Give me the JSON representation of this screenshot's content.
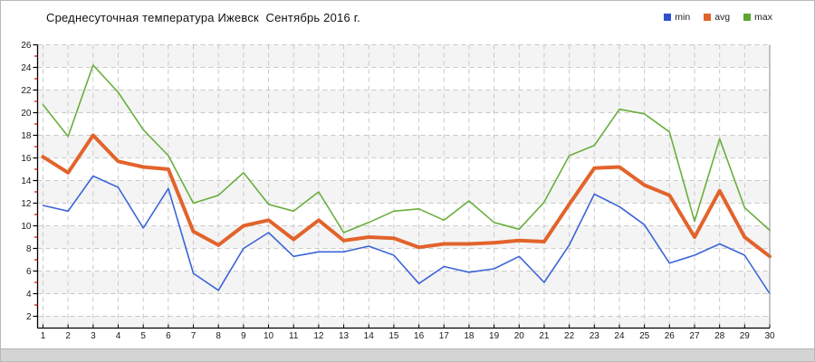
{
  "header": {
    "title": "Среднесуточная температура Ижевск  Сентябрь 2016 г."
  },
  "legend": [
    {
      "label": "min",
      "color": "#2d50d2"
    },
    {
      "label": "avg",
      "color": "#e2632b"
    },
    {
      "label": "max",
      "color": "#5ca531"
    }
  ],
  "chart_data": {
    "type": "line",
    "title": "Среднесуточная температура Ижевск  Сентябрь 2016 г.",
    "xlabel": "",
    "ylabel": "",
    "categories": [
      1,
      2,
      3,
      4,
      5,
      6,
      7,
      8,
      9,
      10,
      11,
      12,
      13,
      14,
      15,
      16,
      17,
      18,
      19,
      20,
      21,
      22,
      23,
      24,
      25,
      26,
      27,
      28,
      29,
      30
    ],
    "series": [
      {
        "name": "max",
        "color": "#6aae3e",
        "width": 1.6,
        "values": [
          20.7,
          17.9,
          24.2,
          21.8,
          18.5,
          16.2,
          12.0,
          12.7,
          14.7,
          11.9,
          11.3,
          13.0,
          9.4,
          10.3,
          11.3,
          11.5,
          10.5,
          12.2,
          10.3,
          9.7,
          12.1,
          16.2,
          17.1,
          20.3,
          19.9,
          18.3,
          10.4,
          17.7,
          11.6,
          9.6
        ]
      },
      {
        "name": "avg",
        "color": "#e2632b",
        "width": 4,
        "values": [
          16.1,
          14.7,
          18.0,
          15.7,
          15.2,
          15.0,
          9.5,
          8.3,
          10.0,
          10.5,
          8.8,
          10.5,
          8.7,
          9.0,
          8.9,
          8.1,
          8.4,
          8.4,
          8.5,
          8.7,
          8.6,
          11.9,
          15.1,
          15.2,
          13.6,
          12.7,
          9.0,
          13.1,
          9.0,
          7.3
        ]
      },
      {
        "name": "min",
        "color": "#3b64d8",
        "width": 1.6,
        "values": [
          11.8,
          11.3,
          14.4,
          13.4,
          9.8,
          13.3,
          5.8,
          4.3,
          8.0,
          9.4,
          7.3,
          7.7,
          7.7,
          8.2,
          7.4,
          4.9,
          6.4,
          5.9,
          6.2,
          7.3,
          5.0,
          8.3,
          12.8,
          11.7,
          10.1,
          6.7,
          7.4,
          8.4,
          7.4,
          4.0
        ]
      }
    ],
    "y_axis": {
      "min": 2,
      "max": 26,
      "step": 2,
      "minor_step": 1,
      "ticks": [
        26,
        24,
        22,
        20,
        18,
        16,
        14,
        12,
        10,
        8,
        6,
        4,
        2
      ]
    },
    "x_axis": {
      "ticks": [
        "1",
        "2",
        "3",
        "4",
        "5",
        "6",
        "7",
        "8",
        "9",
        "10",
        "11",
        "12",
        "13",
        "14",
        "15",
        "16",
        "17",
        "18",
        "19",
        "20",
        "21",
        "22",
        "23",
        "24",
        "25",
        "26",
        "27",
        "28",
        "29",
        "30"
      ]
    },
    "legend_position": "top-right",
    "grid": {
      "on": true,
      "color": "#c9c9c9",
      "dash": "5,4",
      "band_color": "#f4f4f4"
    },
    "axis_color": "#000000",
    "minor_tick_color": "#cc0000",
    "label_color": "#1a1a1a"
  }
}
